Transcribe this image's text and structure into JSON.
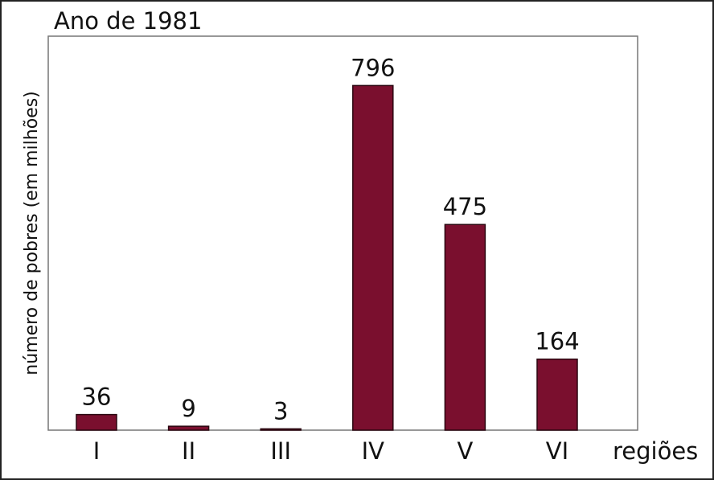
{
  "chart_data": {
    "type": "bar",
    "title": "Ano de 1981",
    "y_label": "número de pobres (em milhões)",
    "x_label": "regiões",
    "categories": [
      "I",
      "II",
      "III",
      "IV",
      "V",
      "VI"
    ],
    "values": [
      36,
      9,
      3,
      796,
      475,
      164
    ],
    "color": "#7a0f2e",
    "ylim": [
      0,
      910
    ]
  }
}
